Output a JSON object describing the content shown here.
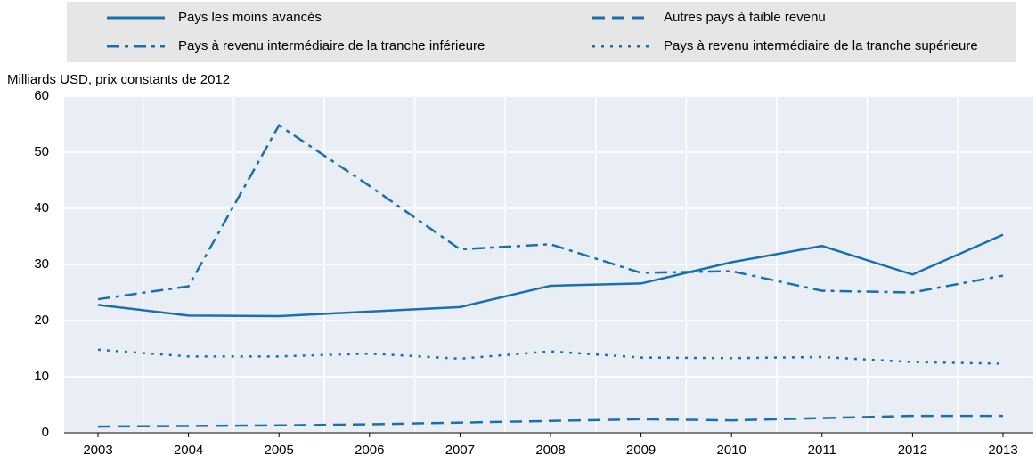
{
  "chart_data": {
    "type": "line",
    "y_label": "Milliards USD, prix constants de 2012",
    "categories": [
      "2003",
      "2004",
      "2005",
      "2006",
      "2007",
      "2008",
      "2009",
      "2010",
      "2011",
      "2012",
      "2013"
    ],
    "series": [
      {
        "name": "Pays les moins avancés",
        "color": "#1a6fae",
        "style": "solid",
        "values": [
          22.8,
          20.9,
          20.8,
          21.6,
          22.4,
          26.2,
          26.6,
          30.4,
          33.3,
          28.2,
          35.3
        ]
      },
      {
        "name": "Autres pays à faible revenu",
        "color": "#1a6fae",
        "style": "dashed",
        "values": [
          1.1,
          1.2,
          1.3,
          1.5,
          1.8,
          2.1,
          2.4,
          2.2,
          2.6,
          3.0,
          3.0
        ]
      },
      {
        "name": "Pays à revenu intermédiaire de la tranche inférieure",
        "color": "#1a6fae",
        "style": "dashdot",
        "values": [
          23.8,
          26.1,
          54.8,
          44.0,
          32.7,
          33.6,
          28.5,
          28.8,
          25.3,
          25.0,
          28.0
        ]
      },
      {
        "name": "Pays à revenu intermédiaire de la tranche supérieure",
        "color": "#1a6fae",
        "style": "dotted",
        "values": [
          14.8,
          13.6,
          13.6,
          14.1,
          13.2,
          14.5,
          13.4,
          13.3,
          13.5,
          12.6,
          12.3
        ]
      }
    ],
    "ylim": [
      0,
      60
    ],
    "yticks": [
      0,
      10,
      20,
      30,
      40,
      50,
      60
    ],
    "grid": true,
    "legend": "top"
  }
}
